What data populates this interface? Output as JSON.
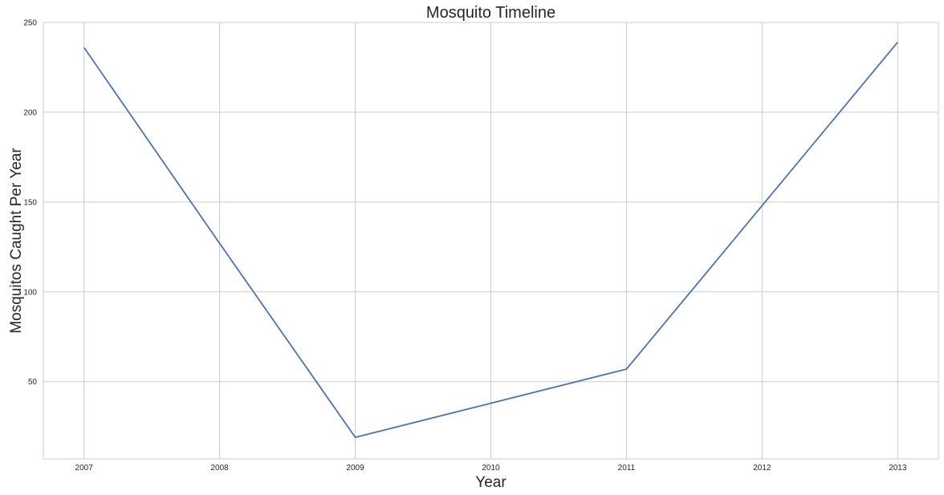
{
  "chart_data": {
    "type": "line",
    "title": "Mosquito Timeline",
    "xlabel": "Year",
    "ylabel": "Mosquitos Caught Per Year",
    "x": [
      2007,
      2008,
      2009,
      2010,
      2011,
      2012,
      2013
    ],
    "xlim": [
      2006.7,
      2013.3
    ],
    "ylim": [
      7,
      250
    ],
    "y_ticks": [
      50,
      100,
      150,
      200,
      250
    ],
    "grid": true,
    "series": [
      {
        "values": [
          236,
          127,
          19,
          38,
          57,
          148,
          239
        ],
        "color": "#4c72b0"
      }
    ]
  }
}
